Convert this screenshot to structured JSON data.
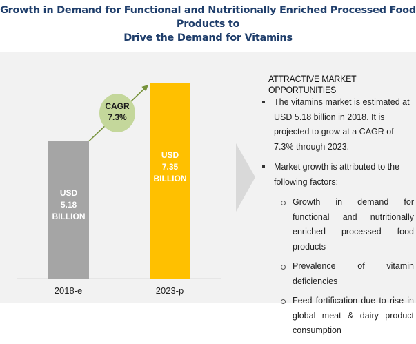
{
  "title": {
    "line1": "Growth in Demand for Functional and Nutritionally Enriched Processed Food Products to",
    "line2": "Drive the Demand for Vitamins"
  },
  "chart_data": {
    "type": "bar",
    "title": "Growth in Demand for Functional and Nutritionally Enriched Processed Food Products to Drive the Demand for Vitamins",
    "categories": [
      "2018-e",
      "2023-p"
    ],
    "values": [
      5.18,
      7.35
    ],
    "unit": "USD Billion",
    "data_labels": [
      {
        "line1": "USD",
        "line2": "5.18",
        "line3": "BILLION"
      },
      {
        "line1": "USD",
        "line2": "7.35",
        "line3": "BILLION"
      }
    ],
    "colors": [
      "#a5a5a5",
      "#ffc000"
    ],
    "annotation": {
      "label": "CAGR",
      "value": "7.3%",
      "color": "#c4d79b",
      "arrow_color": "#77933c"
    },
    "xlabel": "",
    "ylabel": "",
    "ylim": [
      0,
      7.35
    ],
    "grid": false
  },
  "opportunities": {
    "heading": "ATTRACTIVE MARKET OPPORTUNITIES",
    "bullets": [
      {
        "text": "The vitamins market is estimated at USD 5.18 billion in 2018. It is projected to grow at a CAGR of 7.3% through 2023."
      },
      {
        "text": "Market growth is attributed to the following factors:",
        "sub": [
          "Growth in demand for functional and nutritionally enriched processed food products",
          "Prevalence of vitamin deficiencies",
          "Feed fortification due to rise in global meat & dairy product consumption"
        ]
      }
    ]
  }
}
